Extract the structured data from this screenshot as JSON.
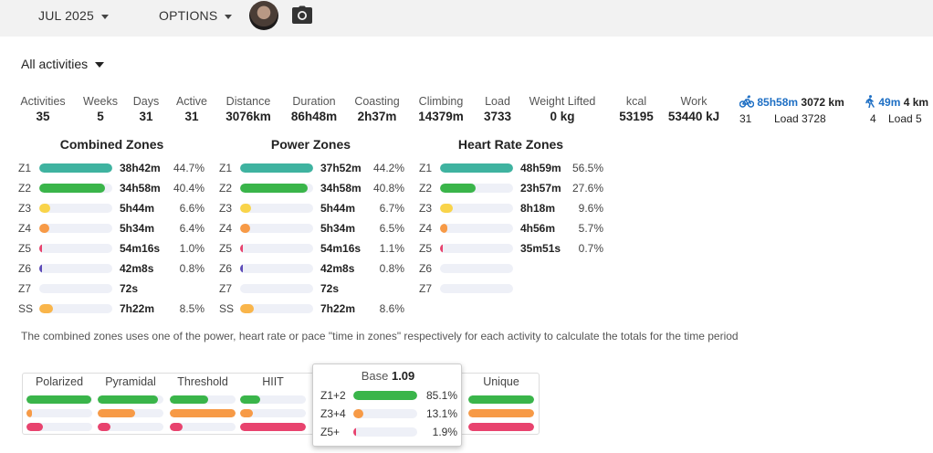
{
  "header": {
    "month": "JUL 2025",
    "options": "OPTIONS"
  },
  "filter": {
    "label": "All activities"
  },
  "stats": [
    {
      "label": "Activities",
      "value": "35"
    },
    {
      "label": "Weeks",
      "value": "5"
    },
    {
      "label": "Days",
      "value": "31"
    },
    {
      "label": "Active",
      "value": "31"
    },
    {
      "label": "Distance",
      "value": "3076km"
    },
    {
      "label": "Duration",
      "value": "86h48m"
    },
    {
      "label": "Coasting",
      "value": "2h37m"
    },
    {
      "label": "Climbing",
      "value": "14379m"
    },
    {
      "label": "Load",
      "value": "3733"
    },
    {
      "label": "Weight Lifted",
      "value": "0 kg"
    },
    {
      "label": "kcal",
      "value": "53195"
    },
    {
      "label": "Work",
      "value": "53440 kJ"
    }
  ],
  "sports": [
    {
      "icon": "bike-icon",
      "time": "85h58m",
      "distance": "3072 km",
      "count": "31",
      "load": "Load 3728"
    },
    {
      "icon": "walk-icon",
      "time": "49m",
      "distance": "4 km",
      "count": "4",
      "load": "Load 5"
    }
  ],
  "zones": {
    "combined": {
      "title": "Combined Zones",
      "rows": [
        {
          "zone": "Z1",
          "time": "38h42m",
          "pct": "44.7%",
          "fill": 1.0,
          "color": "#3fb3a0"
        },
        {
          "zone": "Z2",
          "time": "34h58m",
          "pct": "40.4%",
          "fill": 0.9,
          "color": "#3ab54a"
        },
        {
          "zone": "Z3",
          "time": "5h44m",
          "pct": "6.6%",
          "fill": 0.15,
          "color": "#f9d44a"
        },
        {
          "zone": "Z4",
          "time": "5h34m",
          "pct": "6.4%",
          "fill": 0.14,
          "color": "#f79a46"
        },
        {
          "zone": "Z5",
          "time": "54m16s",
          "pct": "1.0%",
          "fill": 0.03,
          "color": "#e8436e"
        },
        {
          "zone": "Z6",
          "time": "42m8s",
          "pct": "0.8%",
          "fill": 0.02,
          "color": "#5d4cb8"
        },
        {
          "zone": "Z7",
          "time": "72s",
          "pct": "",
          "fill": 0.0,
          "color": "#333"
        },
        {
          "zone": "SS",
          "time": "7h22m",
          "pct": "8.5%",
          "fill": 0.19,
          "color": "#f9b54a"
        }
      ]
    },
    "power": {
      "title": "Power Zones",
      "rows": [
        {
          "zone": "Z1",
          "time": "37h52m",
          "pct": "44.2%",
          "fill": 1.0,
          "color": "#3fb3a0"
        },
        {
          "zone": "Z2",
          "time": "34h58m",
          "pct": "40.8%",
          "fill": 0.93,
          "color": "#3ab54a"
        },
        {
          "zone": "Z3",
          "time": "5h44m",
          "pct": "6.7%",
          "fill": 0.15,
          "color": "#f9d44a"
        },
        {
          "zone": "Z4",
          "time": "5h34m",
          "pct": "6.5%",
          "fill": 0.14,
          "color": "#f79a46"
        },
        {
          "zone": "Z5",
          "time": "54m16s",
          "pct": "1.1%",
          "fill": 0.03,
          "color": "#e8436e"
        },
        {
          "zone": "Z6",
          "time": "42m8s",
          "pct": "0.8%",
          "fill": 0.02,
          "color": "#5d4cb8"
        },
        {
          "zone": "Z7",
          "time": "72s",
          "pct": "",
          "fill": 0.0,
          "color": "#333"
        },
        {
          "zone": "SS",
          "time": "7h22m",
          "pct": "8.6%",
          "fill": 0.19,
          "color": "#f9b54a"
        }
      ]
    },
    "hr": {
      "title": "Heart Rate Zones",
      "rows": [
        {
          "zone": "Z1",
          "time": "48h59m",
          "pct": "56.5%",
          "fill": 1.0,
          "color": "#3fb3a0"
        },
        {
          "zone": "Z2",
          "time": "23h57m",
          "pct": "27.6%",
          "fill": 0.49,
          "color": "#3ab54a"
        },
        {
          "zone": "Z3",
          "time": "8h18m",
          "pct": "9.6%",
          "fill": 0.17,
          "color": "#f9d44a"
        },
        {
          "zone": "Z4",
          "time": "4h56m",
          "pct": "5.7%",
          "fill": 0.1,
          "color": "#f79a46"
        },
        {
          "zone": "Z5",
          "time": "35m51s",
          "pct": "0.7%",
          "fill": 0.015,
          "color": "#e8436e"
        },
        {
          "zone": "Z6",
          "time": "",
          "pct": "",
          "fill": 0.0,
          "color": "#5d4cb8"
        },
        {
          "zone": "Z7",
          "time": "",
          "pct": "",
          "fill": 0.0,
          "color": "#333"
        }
      ]
    }
  },
  "note": "The combined zones uses one of the power, heart rate or pace \"time in zones\" respectively for each activity to calculate the totals for the time period",
  "distribution": {
    "columns": [
      {
        "label": "Polarized",
        "bars": [
          0.98,
          0.08,
          0.25
        ]
      },
      {
        "label": "Pyramidal",
        "bars": [
          0.92,
          0.57,
          0.2
        ]
      },
      {
        "label": "Threshold",
        "bars": [
          0.58,
          1.0,
          0.2
        ]
      },
      {
        "label": "HIIT",
        "bars": [
          0.3,
          0.2,
          1.0
        ]
      },
      {
        "label": "Unique",
        "bars": [
          1.0,
          1.0,
          1.0
        ]
      }
    ],
    "colors": [
      "#3ab54a",
      "#f79a46",
      "#e8436e"
    ]
  },
  "tooltip": {
    "title": "Base",
    "value": "1.09",
    "rows": [
      {
        "label": "Z1+2",
        "pct": "85.1%",
        "fill": 1.0,
        "color": "#3ab54a"
      },
      {
        "label": "Z3+4",
        "pct": "13.1%",
        "fill": 0.15,
        "color": "#f79a46"
      },
      {
        "label": "Z5+",
        "pct": "1.9%",
        "fill": 0.025,
        "color": "#e8436e"
      }
    ]
  }
}
